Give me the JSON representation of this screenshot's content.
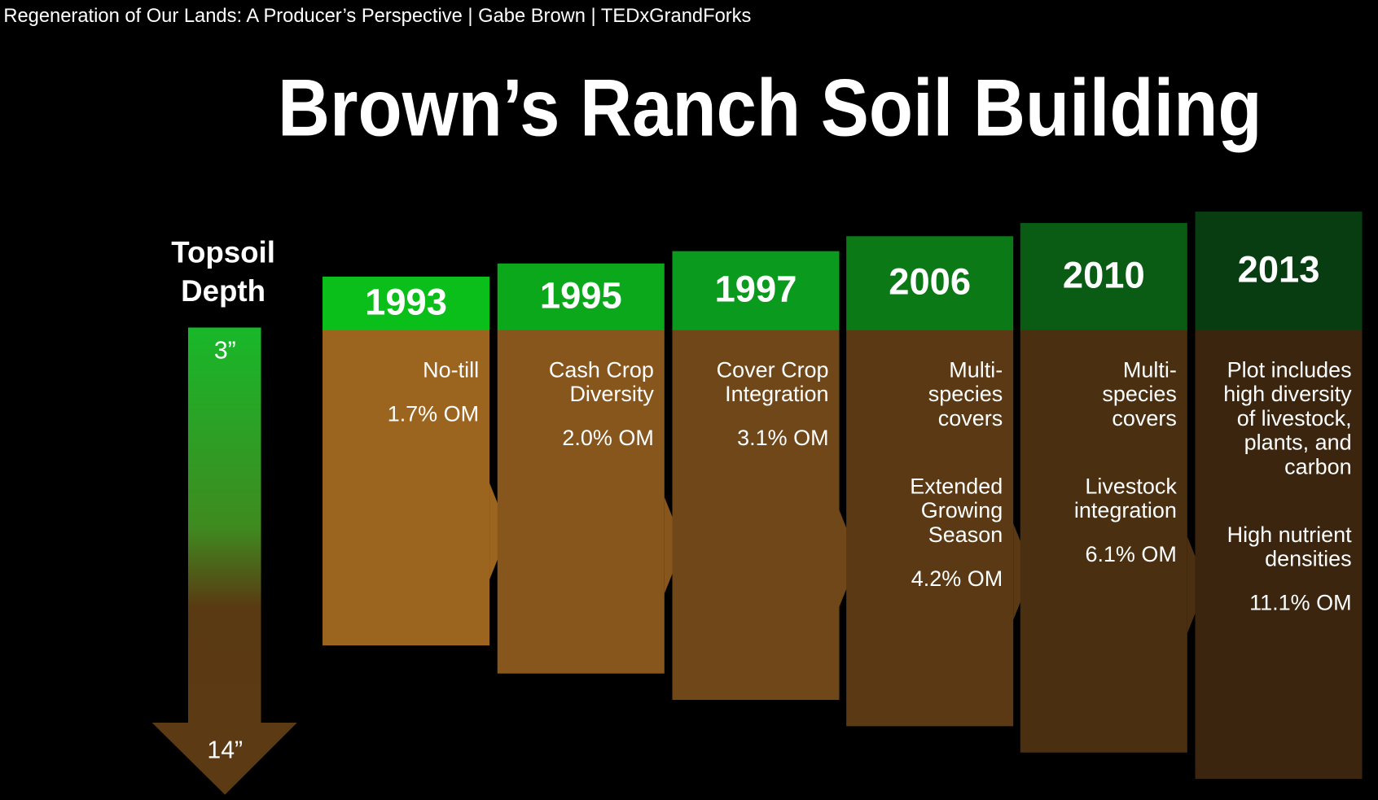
{
  "video_title": "Regeneration of Our Lands: A Producer’s Perspective | Gabe Brown | TEDxGrandForks",
  "slide": {
    "title": "Brown’s Ranch Soil Building",
    "depth": {
      "label": [
        "Topsoil",
        "Depth"
      ],
      "top": "3”",
      "bottom": "14”"
    },
    "columns": [
      {
        "year": "1993",
        "blocks": [
          [
            "No-till"
          ]
        ],
        "om": "1.7% OM"
      },
      {
        "year": "1995",
        "blocks": [
          [
            "Cash Crop",
            "Diversity"
          ]
        ],
        "om": "2.0% OM"
      },
      {
        "year": "1997",
        "blocks": [
          [
            "Cover Crop",
            "Integration"
          ]
        ],
        "om": "3.1% OM"
      },
      {
        "year": "2006",
        "blocks": [
          [
            "Multi-",
            "species",
            "covers"
          ],
          [
            "Extended",
            "Growing",
            "Season"
          ]
        ],
        "om": "4.2% OM"
      },
      {
        "year": "2010",
        "blocks": [
          [
            "Multi-",
            "species",
            "covers"
          ],
          [
            "Livestock",
            "integration"
          ]
        ],
        "om": "6.1% OM"
      },
      {
        "year": "2013",
        "blocks": [
          [
            "Plot includes",
            "high diversity",
            "of livestock,",
            "plants, and",
            "carbon"
          ],
          [
            "High nutrient",
            "densities"
          ]
        ],
        "om": "11.1% OM"
      }
    ]
  }
}
